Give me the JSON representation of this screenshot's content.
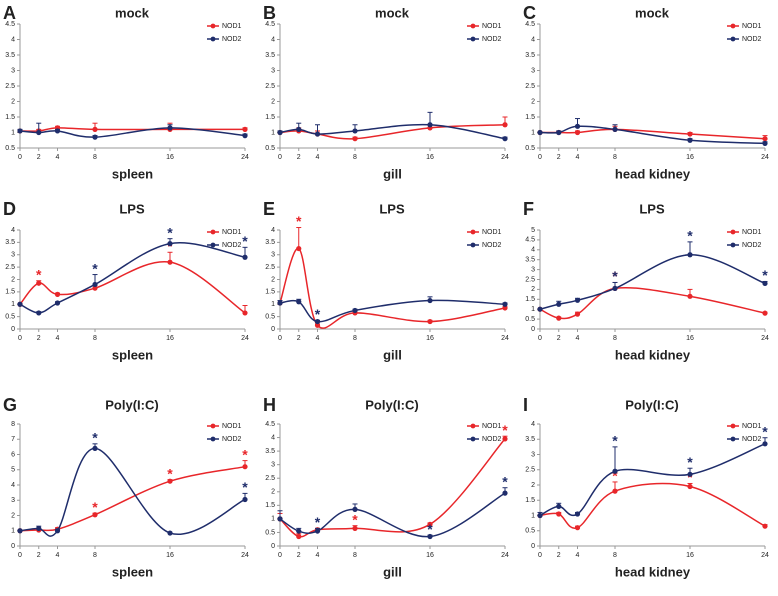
{
  "chart_data": [
    {
      "type": "line",
      "panel": "A",
      "title": "mock",
      "xlabel": "spleen",
      "x": [
        0,
        2,
        4,
        8,
        16,
        24
      ],
      "xlim": [
        0,
        24
      ],
      "xticks": [
        0,
        2,
        4,
        8,
        16,
        24
      ],
      "ylim": [
        0.5,
        4.5
      ],
      "yticks": [
        0.5,
        1,
        1.5,
        2,
        2.5,
        3,
        3.5,
        4,
        4.5
      ],
      "legend": "top-right",
      "smooth": true,
      "series": [
        {
          "name": "NOD1",
          "color": "#e8262a",
          "values": [
            1.05,
            1.05,
            1.15,
            1.1,
            1.1,
            1.1
          ],
          "errors": [
            0,
            0.05,
            0.05,
            0.2,
            0.2,
            0.05
          ],
          "annotations": [
            null,
            null,
            null,
            null,
            null,
            null
          ]
        },
        {
          "name": "NOD2",
          "color": "#1f2d6b",
          "values": [
            1.05,
            1.0,
            1.05,
            0.85,
            1.15,
            0.9
          ],
          "errors": [
            0.05,
            0.3,
            0.05,
            0.05,
            0.1,
            0.05
          ],
          "annotations": [
            null,
            null,
            null,
            null,
            null,
            null
          ]
        }
      ]
    },
    {
      "type": "line",
      "panel": "B",
      "title": "mock",
      "xlabel": "gill",
      "x": [
        0,
        2,
        4,
        8,
        16,
        24
      ],
      "xlim": [
        0,
        24
      ],
      "xticks": [
        0,
        2,
        4,
        8,
        16,
        24
      ],
      "ylim": [
        0.5,
        4.5
      ],
      "yticks": [
        0.5,
        1,
        1.5,
        2,
        2.5,
        3,
        3.5,
        4,
        4.5
      ],
      "legend": "top-right",
      "smooth": true,
      "series": [
        {
          "name": "NOD1",
          "color": "#e8262a",
          "values": [
            1,
            1.05,
            0.95,
            0.8,
            1.15,
            1.25
          ],
          "errors": [
            0,
            0.1,
            0.1,
            0.05,
            0.1,
            0.25
          ],
          "annotations": [
            null,
            null,
            null,
            null,
            null,
            null
          ]
        },
        {
          "name": "NOD2",
          "color": "#1f2d6b",
          "values": [
            1,
            1.1,
            0.95,
            1.05,
            1.25,
            0.8
          ],
          "errors": [
            0.05,
            0.2,
            0.3,
            0.2,
            0.4,
            0.05
          ],
          "annotations": [
            null,
            null,
            null,
            null,
            null,
            null
          ]
        }
      ]
    },
    {
      "type": "line",
      "panel": "C",
      "title": "mock",
      "xlabel": "head kidney",
      "x": [
        0,
        2,
        4,
        8,
        16,
        24
      ],
      "xlim": [
        0,
        24
      ],
      "xticks": [
        0,
        2,
        4,
        8,
        16,
        24
      ],
      "ylim": [
        0.5,
        4.5
      ],
      "yticks": [
        0.5,
        1,
        1.5,
        2,
        2.5,
        3,
        3.5,
        4,
        4.5
      ],
      "legend": "top-right",
      "smooth": true,
      "series": [
        {
          "name": "NOD1",
          "color": "#e8262a",
          "values": [
            1,
            1,
            1,
            1.1,
            0.95,
            0.8
          ],
          "errors": [
            0,
            0.05,
            0.05,
            0.1,
            0.05,
            0.1
          ],
          "annotations": [
            null,
            null,
            null,
            null,
            null,
            null
          ]
        },
        {
          "name": "NOD2",
          "color": "#1f2d6b",
          "values": [
            1,
            1,
            1.2,
            1.1,
            0.75,
            0.65
          ],
          "errors": [
            0,
            0.05,
            0.25,
            0.15,
            0.05,
            0.05
          ],
          "annotations": [
            null,
            null,
            null,
            null,
            null,
            null
          ]
        }
      ]
    },
    {
      "type": "line",
      "panel": "D",
      "title": "LPS",
      "xlabel": "spleen",
      "x": [
        0,
        2,
        4,
        8,
        16,
        24
      ],
      "xlim": [
        0,
        24
      ],
      "xticks": [
        0,
        2,
        4,
        8,
        16,
        24
      ],
      "ylim": [
        0,
        4
      ],
      "yticks": [
        0,
        0.5,
        1,
        1.5,
        2,
        2.5,
        3,
        3.5,
        4
      ],
      "legend": "top-right",
      "smooth": true,
      "series": [
        {
          "name": "NOD1",
          "color": "#e8262a",
          "values": [
            1,
            1.85,
            1.4,
            1.65,
            2.7,
            0.65
          ],
          "errors": [
            0,
            0.1,
            0.05,
            0.1,
            0.4,
            0.3
          ],
          "annotations": [
            null,
            "*",
            null,
            null,
            "*",
            null
          ]
        },
        {
          "name": "NOD2",
          "color": "#1f2d6b",
          "values": [
            1,
            0.65,
            1.05,
            1.8,
            3.45,
            2.9
          ],
          "errors": [
            0,
            0.05,
            0.05,
            0.4,
            0.2,
            0.4
          ],
          "annotations": [
            null,
            null,
            null,
            "*",
            "*",
            "*"
          ]
        }
      ]
    },
    {
      "type": "line",
      "panel": "E",
      "title": "LPS",
      "xlabel": "gill",
      "x": [
        0,
        2,
        4,
        8,
        16,
        24
      ],
      "xlim": [
        0,
        24
      ],
      "xticks": [
        0,
        2,
        4,
        8,
        16,
        24
      ],
      "ylim": [
        0,
        4
      ],
      "yticks": [
        0,
        0.5,
        1,
        1.5,
        2,
        2.5,
        3,
        3.5,
        4
      ],
      "legend": "top-right",
      "smooth": true,
      "series": [
        {
          "name": "NOD1",
          "color": "#e8262a",
          "values": [
            1.05,
            3.25,
            0.15,
            0.65,
            0.3,
            0.85
          ],
          "errors": [
            0,
            0.85,
            0.05,
            0.05,
            0.05,
            0.05
          ],
          "annotations": [
            null,
            "*",
            null,
            null,
            null,
            null
          ]
        },
        {
          "name": "NOD2",
          "color": "#1f2d6b",
          "values": [
            1.05,
            1.1,
            0.3,
            0.75,
            1.15,
            1.0
          ],
          "errors": [
            0.1,
            0.1,
            0.05,
            0.05,
            0.15,
            0.05
          ],
          "annotations": [
            null,
            null,
            "*",
            null,
            null,
            null
          ]
        }
      ]
    },
    {
      "type": "line",
      "panel": "F",
      "title": "LPS",
      "xlabel": "head kidney",
      "x": [
        0,
        2,
        4,
        8,
        16,
        24
      ],
      "xlim": [
        0,
        24
      ],
      "xticks": [
        0,
        2,
        4,
        8,
        16,
        24
      ],
      "ylim": [
        0,
        5
      ],
      "yticks": [
        0,
        0.5,
        1,
        1.5,
        2,
        2.5,
        3,
        3.5,
        4,
        4.5,
        5
      ],
      "legend": "top-right",
      "smooth": true,
      "series": [
        {
          "name": "NOD1",
          "color": "#e8262a",
          "values": [
            1,
            0.55,
            0.75,
            2.05,
            1.65,
            0.8
          ],
          "errors": [
            0,
            0.05,
            0.1,
            0.3,
            0.35,
            0.05
          ],
          "annotations": [
            null,
            null,
            null,
            "*",
            null,
            null
          ]
        },
        {
          "name": "NOD2",
          "color": "#1f2d6b",
          "values": [
            1,
            1.25,
            1.45,
            2.05,
            3.75,
            2.3
          ],
          "errors": [
            0,
            0.15,
            0.1,
            0.3,
            0.65,
            0.1
          ],
          "annotations": [
            null,
            null,
            null,
            "*",
            "*",
            "*"
          ]
        }
      ]
    },
    {
      "type": "line",
      "panel": "G",
      "title": "Poly(I:C)",
      "xlabel": "spleen",
      "x": [
        0,
        2,
        4,
        8,
        16,
        24
      ],
      "xlim": [
        0,
        24
      ],
      "xticks": [
        0,
        2,
        4,
        8,
        16,
        24
      ],
      "ylim": [
        0,
        8
      ],
      "yticks": [
        0,
        1,
        2,
        3,
        4,
        5,
        6,
        7,
        8
      ],
      "legend": "top-right",
      "smooth": true,
      "series": [
        {
          "name": "NOD1",
          "color": "#e8262a",
          "values": [
            1,
            1.05,
            1.1,
            2.05,
            4.25,
            5.2
          ],
          "errors": [
            0,
            0.1,
            0.1,
            0.1,
            0.1,
            0.4
          ],
          "annotations": [
            null,
            null,
            null,
            "*",
            "*",
            "*"
          ]
        },
        {
          "name": "NOD2",
          "color": "#1f2d6b",
          "values": [
            1,
            1.15,
            1,
            6.4,
            0.85,
            3.05
          ],
          "errors": [
            0,
            0.15,
            0.1,
            0.3,
            0.05,
            0.4
          ],
          "annotations": [
            null,
            null,
            null,
            "*",
            null,
            "*"
          ]
        }
      ]
    },
    {
      "type": "line",
      "panel": "H",
      "title": "Poly(I:C)",
      "xlabel": "gill",
      "x": [
        0,
        2,
        4,
        8,
        16,
        24
      ],
      "xlim": [
        0,
        24
      ],
      "xticks": [
        0,
        2,
        4,
        8,
        16,
        24
      ],
      "ylim": [
        0,
        4.5
      ],
      "yticks": [
        0,
        0.5,
        1,
        1.5,
        2,
        2.5,
        3,
        3.5,
        4,
        4.5
      ],
      "legend": "top-right",
      "smooth": true,
      "series": [
        {
          "name": "NOD1",
          "color": "#e8262a",
          "values": [
            1,
            0.35,
            0.6,
            0.65,
            0.8,
            3.95
          ],
          "errors": [
            0.2,
            0.1,
            0.05,
            0.1,
            0.05,
            0.1
          ],
          "annotations": [
            null,
            null,
            null,
            "*",
            null,
            "*"
          ]
        },
        {
          "name": "NOD2",
          "color": "#1f2d6b",
          "values": [
            1,
            0.55,
            0.55,
            1.35,
            0.35,
            1.95
          ],
          "errors": [
            0.3,
            0.1,
            0.1,
            0.2,
            0.05,
            0.2
          ],
          "annotations": [
            null,
            null,
            "*",
            null,
            "*",
            "*"
          ]
        }
      ]
    },
    {
      "type": "line",
      "panel": "I",
      "title": "Poly(I:C)",
      "xlabel": "head kidney",
      "x": [
        0,
        2,
        4,
        8,
        16,
        24
      ],
      "xlim": [
        0,
        24
      ],
      "xticks": [
        0,
        2,
        4,
        8,
        16,
        24
      ],
      "ylim": [
        0,
        4
      ],
      "yticks": [
        0,
        0.5,
        1,
        1.5,
        2,
        2.5,
        3,
        3.5,
        4
      ],
      "legend": "top-right",
      "smooth": true,
      "series": [
        {
          "name": "NOD1",
          "color": "#e8262a",
          "values": [
            1,
            1.05,
            0.6,
            1.8,
            1.95,
            0.65
          ],
          "errors": [
            0,
            0.05,
            0.05,
            0.3,
            0.1,
            0.05
          ],
          "annotations": [
            null,
            null,
            null,
            "*",
            "*",
            null
          ]
        },
        {
          "name": "NOD2",
          "color": "#1f2d6b",
          "values": [
            1,
            1.3,
            1.05,
            2.45,
            2.35,
            3.35
          ],
          "errors": [
            0.1,
            0.1,
            0.05,
            0.8,
            0.2,
            0.2
          ],
          "annotations": [
            null,
            null,
            null,
            "*",
            "*",
            "*"
          ]
        }
      ]
    }
  ]
}
